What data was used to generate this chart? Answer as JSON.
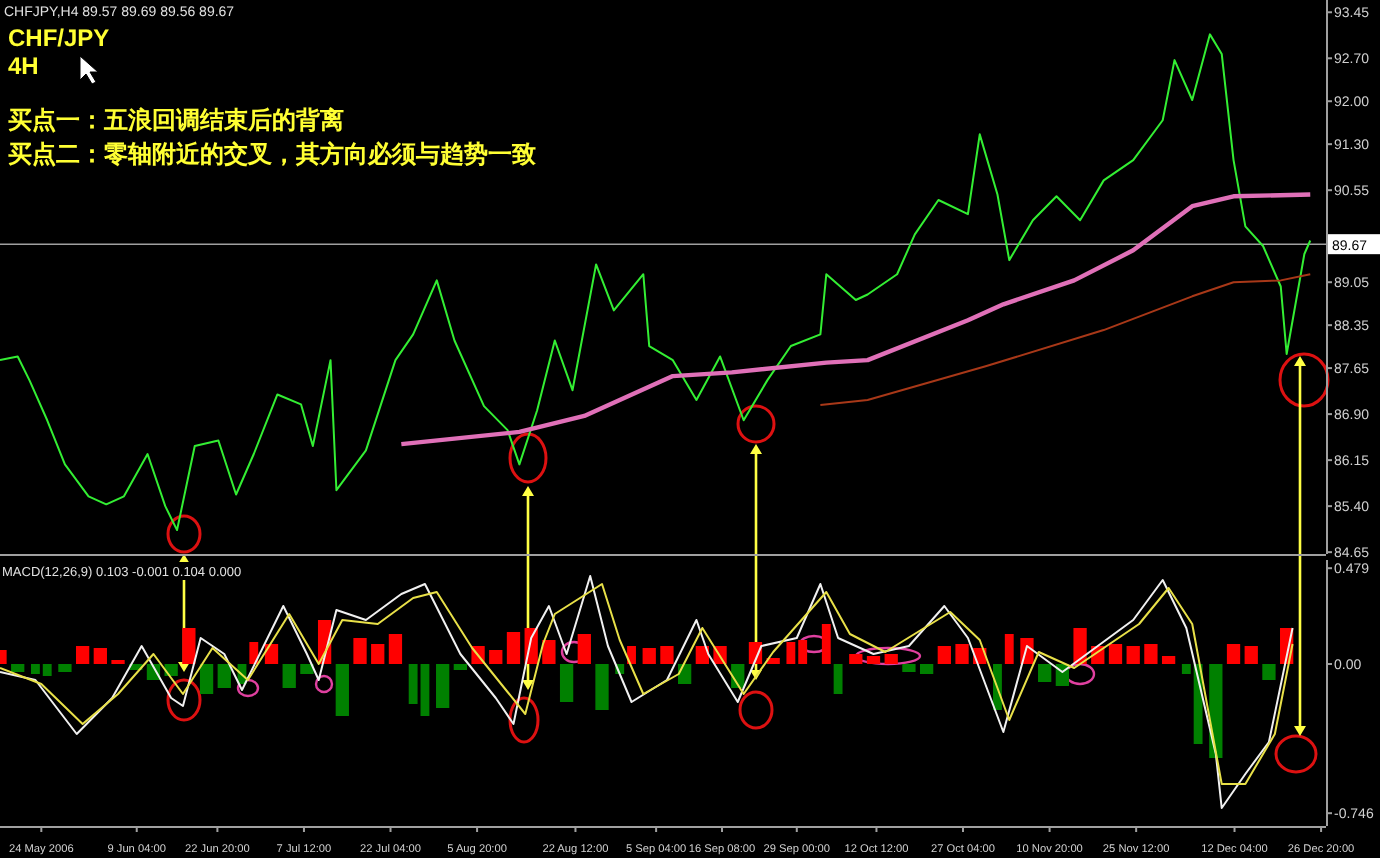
{
  "chart_data": [
    {
      "type": "line",
      "title": "CHF/JPY",
      "subtitle": "4H",
      "annotations": [
        "CHFJPY,H4 89.57 89.69 89.56 89.67",
        "买点一：五浪回调结束后的背离",
        "买点二：零轴附近的交叉，其方向必须与趋势一致"
      ],
      "x": [
        "2006-05-17",
        "2006-05-20",
        "2006-05-22",
        "2006-05-25",
        "2006-05-28",
        "2006-06-01",
        "2006-06-04",
        "2006-06-07",
        "2006-06-11",
        "2006-06-14",
        "2006-06-16",
        "2006-06-19",
        "2006-06-23",
        "2006-06-26",
        "2006-06-29",
        "2006-07-03",
        "2006-07-07",
        "2006-07-09",
        "2006-07-12",
        "2006-07-13",
        "2006-07-18",
        "2006-07-23",
        "2006-07-26",
        "2006-07-30",
        "2006-08-02",
        "2006-08-07",
        "2006-08-11",
        "2006-08-13",
        "2006-08-16",
        "2006-08-19",
        "2006-08-22",
        "2006-08-26",
        "2006-08-29",
        "2006-09-03",
        "2006-09-04",
        "2006-09-08",
        "2006-09-12",
        "2006-09-16",
        "2006-09-20",
        "2006-09-24",
        "2006-09-28",
        "2006-10-03",
        "2006-10-04",
        "2006-10-09",
        "2006-10-11",
        "2006-10-16",
        "2006-10-19",
        "2006-10-23",
        "2006-10-28",
        "2006-10-30",
        "2006-11-02",
        "2006-11-04",
        "2006-11-08",
        "2006-11-12",
        "2006-11-16",
        "2006-11-20",
        "2006-11-25",
        "2006-11-30",
        "2006-12-02",
        "2006-12-05",
        "2006-12-08",
        "2006-12-10",
        "2006-12-12",
        "2006-12-14",
        "2006-12-17",
        "2006-12-20",
        "2006-12-21",
        "2006-12-24",
        "2006-12-25"
      ],
      "series": [
        {
          "color": "#33ee33",
          "values": [
            87.78,
            87.84,
            87.45,
            86.8,
            86.08,
            85.56,
            85.43,
            85.56,
            86.25,
            85.4,
            85.01,
            86.38,
            86.47,
            85.59,
            86.25,
            87.22,
            87.06,
            86.38,
            87.78,
            85.66,
            86.31,
            87.78,
            88.2,
            89.08,
            88.1,
            87.03,
            86.64,
            86.08,
            86.96,
            88.1,
            87.29,
            89.34,
            88.59,
            89.18,
            88.01,
            87.78,
            87.13,
            87.84,
            86.8,
            87.45,
            88.01,
            88.2,
            89.18,
            88.76,
            88.85,
            89.18,
            89.83,
            90.39,
            90.16,
            91.46,
            90.48,
            89.41,
            90.06,
            90.45,
            90.06,
            90.71,
            91.04,
            91.69,
            92.67,
            92.02,
            93.09,
            92.77,
            91.04,
            89.96,
            89.64,
            88.98,
            87.88,
            89.51,
            89.73
          ]
        },
        {
          "color": "#e070b8",
          "x": [
            "2006-07-24",
            "2006-08-13",
            "2006-08-24",
            "2006-09-08",
            "2006-09-18",
            "2006-10-04",
            "2006-10-11",
            "2006-10-28",
            "2006-11-03",
            "2006-11-15",
            "2006-11-25",
            "2006-12-05",
            "2006-12-12",
            "2006-12-25"
          ],
          "values": [
            86.41,
            86.61,
            86.87,
            87.52,
            87.58,
            87.74,
            87.78,
            88.43,
            88.69,
            89.08,
            89.57,
            90.29,
            90.45,
            90.48
          ]
        },
        {
          "color": "#a83818",
          "x": [
            "2006-10-03",
            "2006-10-11",
            "2006-10-31",
            "2006-11-20",
            "2006-12-05",
            "2006-12-12",
            "2006-12-20",
            "2006-12-25"
          ],
          "values": [
            87.05,
            87.13,
            87.68,
            88.27,
            88.82,
            89.05,
            89.08,
            89.18
          ]
        }
      ],
      "xlim": [
        "2006-05-17T00:00",
        "2006-12-27T16:00"
      ],
      "ylim": [
        84.62,
        93.65
      ],
      "yticks": [
        93.45,
        {
          "value": 92.7,
          "label": "92.70"
        },
        {
          "value": 92,
          "label": "92.00"
        },
        {
          "value": 91.3,
          "label": "91.30"
        },
        90.55,
        89.05,
        88.35,
        87.65,
        {
          "value": 86.9,
          "label": "86.90"
        },
        86.15,
        {
          "value": 85.4,
          "label": "85.40"
        },
        84.65
      ],
      "ref_lines": [
        {
          "axis": "y",
          "value": 89.67,
          "label": "89.67",
          "color": "#a0a0a0"
        }
      ],
      "tick_labels": "y"
    },
    {
      "type": "bar",
      "title": "MACD(12,26,9) 0.103 -0.001 0.104 0.000",
      "series": [
        {
          "x": [
            "2006-05-17",
            "2006-05-20",
            "2006-05-23",
            "2006-05-25",
            "2006-05-28",
            "2006-05-31",
            "2006-06-03",
            "2006-06-06",
            "2006-06-09",
            "2006-06-12",
            "2006-06-15",
            "2006-06-18",
            "2006-06-21",
            "2006-06-24",
            "2006-06-27",
            "2006-06-29",
            "2006-07-02",
            "2006-07-05",
            "2006-07-08",
            "2006-07-11",
            "2006-07-14",
            "2006-07-17",
            "2006-07-20",
            "2006-07-23",
            "2006-07-26",
            "2006-07-28",
            "2006-07-31",
            "2006-08-03",
            "2006-08-06",
            "2006-08-09",
            "2006-08-12",
            "2006-08-15",
            "2006-08-18",
            "2006-08-21",
            "2006-08-24",
            "2006-08-27",
            "2006-08-30",
            "2006-09-01",
            "2006-09-04",
            "2006-09-07",
            "2006-09-10",
            "2006-09-13",
            "2006-09-16",
            "2006-09-19",
            "2006-09-22",
            "2006-09-25",
            "2006-09-28",
            "2006-09-30",
            "2006-10-04",
            "2006-10-06",
            "2006-10-09",
            "2006-10-12",
            "2006-10-15",
            "2006-10-18",
            "2006-10-21",
            "2006-10-24",
            "2006-10-27",
            "2006-10-30",
            "2006-11-02",
            "2006-11-04",
            "2006-11-07",
            "2006-11-10",
            "2006-11-13",
            "2006-11-16",
            "2006-11-19",
            "2006-11-22",
            "2006-11-25",
            "2006-11-28",
            "2006-12-01",
            "2006-12-04",
            "2006-12-06",
            "2006-12-09",
            "2006-12-12",
            "2006-12-15",
            "2006-12-18",
            "2006-12-21"
          ],
          "values": [
            0.07,
            -0.04,
            -0.05,
            -0.06,
            -0.04,
            0.09,
            0.08,
            0.02,
            -0.03,
            -0.08,
            -0.06,
            0.18,
            -0.15,
            -0.12,
            -0.1,
            0.11,
            0.1,
            -0.12,
            -0.05,
            0.22,
            -0.26,
            0.13,
            0.1,
            0.15,
            -0.2,
            -0.26,
            -0.22,
            -0.03,
            0.09,
            0.07,
            0.16,
            0.18,
            0.12,
            -0.19,
            0.15,
            -0.23,
            -0.05,
            0.09,
            0.08,
            0.09,
            -0.1,
            0.09,
            0.09,
            -0.12,
            0.11,
            0.03,
            0.11,
            0.12,
            0.2,
            -0.15,
            0.05,
            0.04,
            0.05,
            -0.04,
            -0.05,
            0.09,
            0.1,
            0.08,
            -0.23,
            0.15,
            0.13,
            -0.09,
            -0.11,
            0.18,
            0.09,
            0.1,
            0.09,
            0.1,
            0.04,
            -0.05,
            -0.4,
            -0.47,
            0.1,
            0.09,
            -0.08,
            0.18
          ],
          "colors": [
            "#ff0000",
            "#008000",
            "#008000",
            "#008000",
            "#008000",
            "#ff0000",
            "#ff0000",
            "#ff0000",
            "#008000",
            "#008000",
            "#008000",
            "#ff0000",
            "#008000",
            "#008000",
            "#008000",
            "#ff0000",
            "#ff0000",
            "#008000",
            "#008000",
            "#ff0000",
            "#008000",
            "#ff0000",
            "#ff0000",
            "#ff0000",
            "#008000",
            "#008000",
            "#008000",
            "#008000",
            "#ff0000",
            "#ff0000",
            "#ff0000",
            "#ff0000",
            "#ff0000",
            "#008000",
            "#ff0000",
            "#008000",
            "#008000",
            "#ff0000",
            "#ff0000",
            "#ff0000",
            "#008000",
            "#ff0000",
            "#ff0000",
            "#008000",
            "#ff0000",
            "#ff0000",
            "#ff0000",
            "#ff0000",
            "#ff0000",
            "#008000",
            "#ff0000",
            "#ff0000",
            "#ff0000",
            "#008000",
            "#008000",
            "#ff0000",
            "#ff0000",
            "#ff0000",
            "#008000",
            "#ff0000",
            "#ff0000",
            "#008000",
            "#008000",
            "#ff0000",
            "#ff0000",
            "#ff0000",
            "#ff0000",
            "#ff0000",
            "#ff0000",
            "#008000",
            "#008000",
            "#008000",
            "#ff0000",
            "#ff0000",
            "#008000",
            "#ff0000"
          ]
        },
        {
          "type": "line",
          "color": "#f0f0f0",
          "x": [
            "2006-05-17",
            "2006-05-23",
            "2006-05-30",
            "2006-06-05",
            "2006-06-10",
            "2006-06-15",
            "2006-06-17",
            "2006-06-20",
            "2006-06-24",
            "2006-06-27",
            "2006-07-04",
            "2006-07-08",
            "2006-07-10",
            "2006-07-13",
            "2006-07-18",
            "2006-07-24",
            "2006-07-28",
            "2006-08-03",
            "2006-08-09",
            "2006-08-12",
            "2006-08-15",
            "2006-08-18",
            "2006-08-21",
            "2006-08-25",
            "2006-08-28",
            "2006-09-01",
            "2006-09-07",
            "2006-09-12",
            "2006-09-14",
            "2006-09-19",
            "2006-09-23",
            "2006-09-29",
            "2006-10-03",
            "2006-10-06",
            "2006-10-12",
            "2006-10-18",
            "2006-10-24",
            "2006-10-28",
            "2006-11-03",
            "2006-11-07",
            "2006-11-13",
            "2006-11-19",
            "2006-11-25",
            "2006-11-30",
            "2006-12-04",
            "2006-12-09",
            "2006-12-10",
            "2006-12-14",
            "2006-12-18",
            "2006-12-22"
          ],
          "values": [
            -0.04,
            -0.08,
            -0.35,
            -0.17,
            0.09,
            -0.17,
            -0.21,
            0.13,
            0.05,
            -0.13,
            0.29,
            0.05,
            -0.08,
            0.27,
            0.22,
            0.35,
            0.4,
            0.05,
            -0.17,
            -0.3,
            0.13,
            0.29,
            0.05,
            0.44,
            0.09,
            -0.19,
            -0.08,
            0.22,
            0.05,
            -0.19,
            0.09,
            0.13,
            0.4,
            0.13,
            0.05,
            0.09,
            0.29,
            0.13,
            -0.34,
            0.09,
            -0.04,
            0.09,
            0.22,
            0.42,
            0.18,
            -0.45,
            -0.72,
            -0.55,
            -0.39,
            0.18
          ]
        },
        {
          "type": "line",
          "color": "#e8e048",
          "x": [
            "2006-05-17",
            "2006-05-24",
            "2006-05-31",
            "2006-06-06",
            "2006-06-12",
            "2006-06-17",
            "2006-06-22",
            "2006-06-28",
            "2006-07-05",
            "2006-07-10",
            "2006-07-14",
            "2006-07-20",
            "2006-07-26",
            "2006-07-30",
            "2006-08-05",
            "2006-08-11",
            "2006-08-14",
            "2006-08-17",
            "2006-08-19",
            "2006-08-27",
            "2006-08-30",
            "2006-09-03",
            "2006-09-09",
            "2006-09-13",
            "2006-09-20",
            "2006-09-25",
            "2006-10-04",
            "2006-10-08",
            "2006-10-14",
            "2006-10-25",
            "2006-10-30",
            "2006-11-04",
            "2006-11-09",
            "2006-11-15",
            "2006-11-26",
            "2006-12-01",
            "2006-12-05",
            "2006-12-10",
            "2006-12-14",
            "2006-12-19",
            "2006-12-22"
          ],
          "values": [
            -0.02,
            -0.1,
            -0.3,
            -0.15,
            0.05,
            -0.15,
            0.08,
            -0.08,
            0.25,
            0.0,
            0.22,
            0.2,
            0.33,
            0.36,
            0.08,
            -0.14,
            -0.25,
            0.1,
            0.25,
            0.4,
            0.12,
            -0.15,
            -0.05,
            0.18,
            -0.15,
            0.06,
            0.36,
            0.15,
            0.06,
            0.26,
            0.12,
            -0.28,
            0.06,
            -0.02,
            0.2,
            0.38,
            0.2,
            -0.6,
            -0.6,
            -0.35,
            0.1
          ]
        }
      ],
      "xlim": [
        "2006-05-17T00:00",
        "2006-12-27T16:00"
      ],
      "xticks": [
        {
          "value": "2006-05-24T00:00",
          "label": "24 May 2006"
        },
        {
          "value": "2006-06-09T04:00",
          "label": "9 Jun 04:00"
        },
        {
          "value": "2006-06-22T20:00",
          "label": "22 Jun 20:00"
        },
        {
          "value": "2006-07-07T12:00",
          "label": "7 Jul 12:00"
        },
        {
          "value": "2006-07-22T04:00",
          "label": "22 Jul 04:00"
        },
        {
          "value": "2006-08-05T20:00",
          "label": "5 Aug 20:00"
        },
        {
          "value": "2006-08-22T12:00",
          "label": "22 Aug 12:00"
        },
        {
          "value": "2006-09-05T04:00",
          "label": "5 Sep 04:00"
        },
        {
          "value": "2006-09-16T08:00",
          "label": "16 Sep 08:00"
        },
        {
          "value": "2006-09-29T00:00",
          "label": "29 Sep 00:00"
        },
        {
          "value": "2006-10-12T12:00",
          "label": "12 Oct 12:00"
        },
        {
          "value": "2006-10-27T04:00",
          "label": "27 Oct 04:00"
        },
        {
          "value": "2006-11-10T20:00",
          "label": "10 Nov 20:00"
        },
        {
          "value": "2006-11-25T12:00",
          "label": "25 Nov 12:00"
        },
        {
          "value": "2006-12-12T04:00",
          "label": "12 Dec 04:00"
        },
        {
          "value": "2006-12-26T20:00",
          "label": "26 Dec 20:00"
        }
      ],
      "ylim": [
        -0.81,
        0.52
      ],
      "yticks": [
        0.479,
        {
          "value": 0,
          "label": "0.00"
        },
        -0.746
      ]
    }
  ]
}
